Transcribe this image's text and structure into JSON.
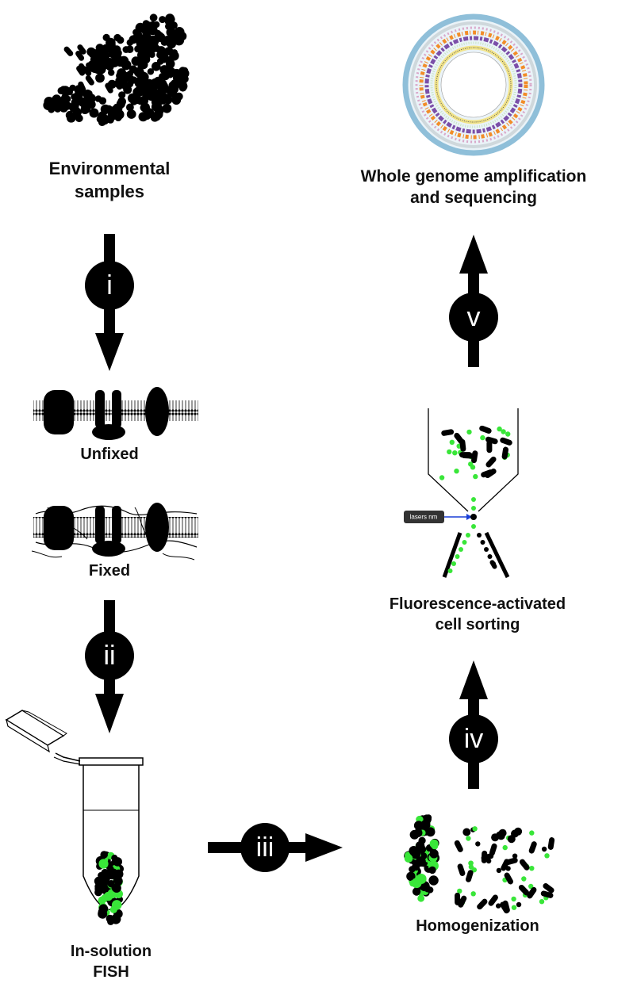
{
  "labels": {
    "environmental": [
      "Environmental",
      "samples"
    ],
    "unfixed": "Unfixed",
    "fixed": "Fixed",
    "insolution": [
      "In-solution",
      "FISH"
    ],
    "homogenization": "Homogenization",
    "facs": [
      "Fluorescence-activated",
      "cell sorting"
    ],
    "wga": [
      "Whole genome amplification",
      "and sequencing"
    ]
  },
  "steps": [
    "i",
    "ii",
    "iii",
    "iv",
    "v"
  ],
  "laser_label": "lasers nm",
  "colors": {
    "ink": "#000000",
    "probe_green": "#39e639",
    "laser_blue": "#1a3fd6",
    "genome_ring": "#8fbfd9",
    "genome_orange": "#f28c28",
    "genome_purple": "#7b4fa8",
    "genome_yellow": "#f2e48a"
  }
}
